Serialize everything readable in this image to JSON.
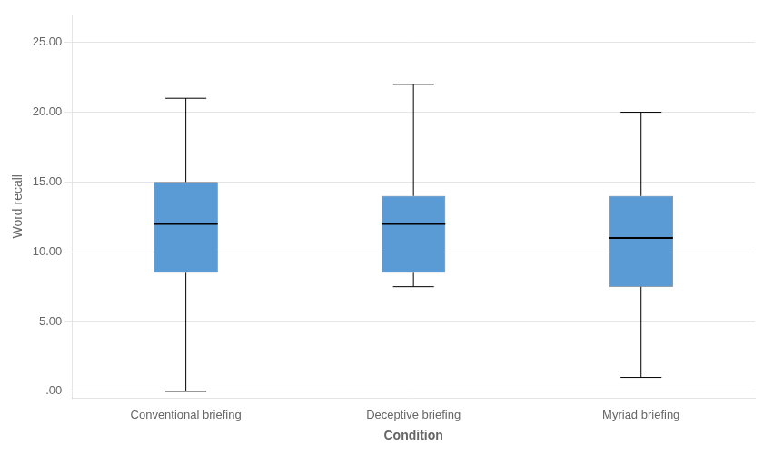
{
  "chart_data": {
    "type": "box",
    "xlabel": "Condition",
    "ylabel": "Word recall",
    "categories": [
      "Conventional briefing",
      "Deceptive briefing",
      "Myriad briefing"
    ],
    "boxes": [
      {
        "whislo": 0.0,
        "q1": 8.5,
        "med": 12.0,
        "q3": 15.0,
        "whishi": 21.0
      },
      {
        "whislo": 7.5,
        "q1": 8.5,
        "med": 12.0,
        "q3": 14.0,
        "whishi": 22.0
      },
      {
        "whislo": 1.0,
        "q1": 7.5,
        "med": 11.0,
        "q3": 14.0,
        "whishi": 20.0
      }
    ],
    "color": "#5B9BD5",
    "ylim": [
      -0.5,
      27
    ],
    "yticks": [
      {
        "value": 0.0,
        "label": ".00"
      },
      {
        "value": 5.0,
        "label": "5.00"
      },
      {
        "value": 10.0,
        "label": "10.00"
      },
      {
        "value": 15.0,
        "label": "15.00"
      },
      {
        "value": 20.0,
        "label": "20.00"
      },
      {
        "value": 25.0,
        "label": "25.00"
      }
    ],
    "grid": true
  }
}
